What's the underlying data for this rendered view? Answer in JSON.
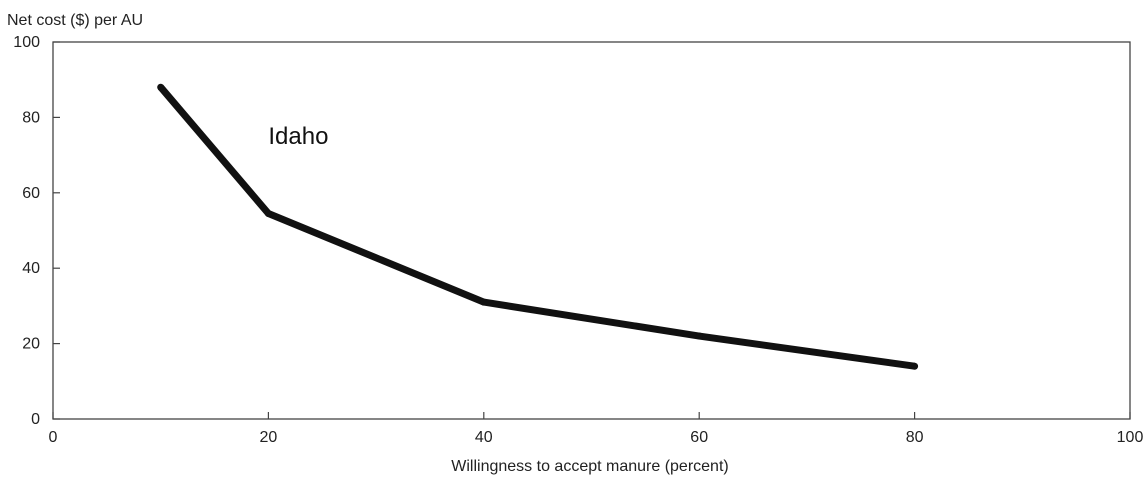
{
  "chart_data": {
    "type": "line",
    "title": "",
    "xlabel": "Willingness to accept manure (percent)",
    "ylabel": "Net cost ($) per AU",
    "xlim": [
      0,
      100
    ],
    "ylim": [
      0,
      100
    ],
    "xticks": [
      0,
      20,
      40,
      60,
      80,
      100
    ],
    "yticks": [
      0,
      20,
      40,
      60,
      80,
      100
    ],
    "grid": false,
    "legend": "none",
    "annotations": [
      {
        "text": "Idaho",
        "x": 20,
        "y": 73
      }
    ],
    "series": [
      {
        "color": "#111111",
        "points": [
          {
            "x": 10,
            "y": 88
          },
          {
            "x": 20,
            "y": 54.5
          },
          {
            "x": 40,
            "y": 31
          },
          {
            "x": 60,
            "y": 22
          },
          {
            "x": 80,
            "y": 14
          }
        ]
      }
    ]
  }
}
